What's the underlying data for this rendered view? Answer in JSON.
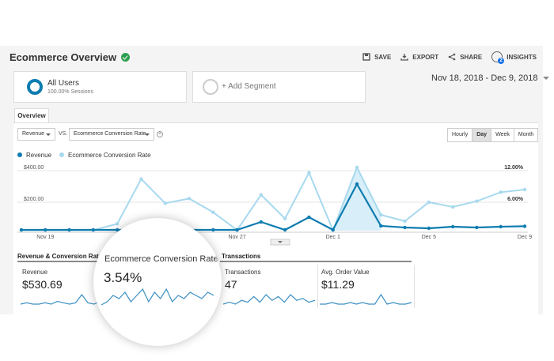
{
  "header": {
    "title": "Ecommerce Overview",
    "actions": [
      {
        "label": "SAVE",
        "icon": "save-icon"
      },
      {
        "label": "EXPORT",
        "icon": "export-icon"
      },
      {
        "label": "SHARE",
        "icon": "share-icon"
      },
      {
        "label": "INSIGHTS",
        "icon": "insights-icon",
        "badge": "2"
      }
    ]
  },
  "segments": {
    "primary": {
      "title": "All Users",
      "subtitle": "100.00% Sessions"
    },
    "add_label": "+ Add Segment"
  },
  "date_range": "Nov 18, 2018 - Dec 9, 2018",
  "tabs": {
    "overview": "Overview"
  },
  "controls": {
    "metric1": "Revenue",
    "vs": "VS.",
    "metric2": "Ecommerce Conversion Rate",
    "granularity": [
      "Hourly",
      "Day",
      "Week",
      "Month"
    ],
    "granularity_selected": "Day"
  },
  "colors": {
    "revenue": "#0e7cb0",
    "conversion": "#a7d9ee",
    "accent": "#2e9e4f"
  },
  "chart_data": {
    "type": "line",
    "x_labels": [
      "Nov 19",
      "Nov 27",
      "Dec 1",
      "Dec 5",
      "Dec 9"
    ],
    "x": [
      "Nov 18",
      "Nov 19",
      "Nov 20",
      "Nov 21",
      "Nov 22",
      "Nov 23",
      "Nov 24",
      "Nov 25",
      "Nov 26",
      "Nov 27",
      "Nov 28",
      "Nov 29",
      "Nov 30",
      "Dec 1",
      "Dec 2",
      "Dec 3",
      "Dec 4",
      "Dec 5",
      "Dec 6",
      "Dec 7",
      "Dec 8",
      "Dec 9"
    ],
    "left_axis_ticks": [
      "$400.00",
      "$200.00"
    ],
    "right_axis_ticks": [
      "12.00%",
      "6.00%"
    ],
    "series": [
      {
        "name": "Revenue",
        "axis": "left",
        "ylim": [
          0,
          400
        ],
        "values": [
          5,
          5,
          5,
          5,
          5,
          5,
          5,
          5,
          5,
          5,
          55,
          5,
          85,
          5,
          295,
          30,
          20,
          15,
          25,
          20,
          25,
          28
        ]
      },
      {
        "name": "Ecommerce Conversion Rate",
        "axis": "right",
        "ylim": [
          0,
          12
        ],
        "values": [
          0.1,
          0.1,
          0.1,
          0.1,
          1.3,
          9.8,
          5.2,
          6.1,
          3.5,
          0.1,
          6.8,
          2.3,
          11.0,
          0.1,
          12.0,
          3.0,
          1.8,
          5.4,
          4.5,
          5.6,
          7.3,
          7.8
        ]
      }
    ]
  },
  "metrics": {
    "heading1": "Revenue & Conversion Rate",
    "heading2": "Transactions",
    "revenue": {
      "label": "Revenue",
      "value": "$530.69"
    },
    "conversion": {
      "label": "Ecommerce Conversion Rate",
      "value": "3.54%"
    },
    "transactions": {
      "label": "Transactions",
      "value": "47"
    },
    "aov": {
      "label": "Avg. Order Value",
      "value": "$11.29"
    }
  },
  "sparklines": {
    "revenue": [
      1,
      2,
      1,
      1,
      2,
      1,
      3,
      2,
      1,
      2,
      8,
      2,
      1,
      3,
      2,
      1
    ],
    "conversion": [
      2,
      3,
      5,
      4,
      6,
      3,
      5,
      7,
      3,
      6,
      4,
      7,
      3,
      5,
      4,
      6,
      5,
      4,
      6,
      5
    ],
    "transactions": [
      1,
      2,
      1,
      3,
      2,
      5,
      2,
      6,
      3,
      5,
      2,
      6,
      3,
      4,
      2,
      3
    ],
    "aov": [
      1,
      1,
      2,
      1,
      1,
      2,
      1,
      2,
      1,
      1,
      7,
      1,
      2,
      1,
      1,
      2
    ]
  }
}
